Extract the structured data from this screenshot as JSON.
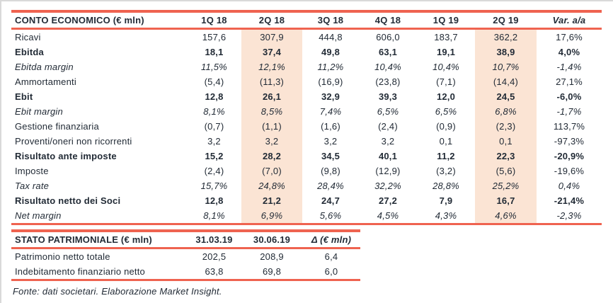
{
  "colors": {
    "accent_line": "#ef6350",
    "highlight": "#fbe4d4",
    "text": "#222b36",
    "frame_border": "#d9d9d9"
  },
  "income_statement": {
    "title": "CONTO ECONOMICO (€ mln)",
    "columns": [
      "1Q 18",
      "2Q 18",
      "3Q 18",
      "4Q 18",
      "1Q 19",
      "2Q 19",
      "Var. a/a"
    ],
    "highlight_columns": [
      "2Q 18",
      "2Q 19"
    ],
    "rows": [
      {
        "label": "Ricavi",
        "style": "normal",
        "values": [
          "157,6",
          "307,9",
          "444,8",
          "606,0",
          "183,7",
          "362,2",
          "17,6%"
        ]
      },
      {
        "label": "Ebitda",
        "style": "bold",
        "values": [
          "18,1",
          "37,4",
          "49,8",
          "63,1",
          "19,1",
          "38,9",
          "4,0%"
        ]
      },
      {
        "label": "Ebitda margin",
        "style": "italic",
        "values": [
          "11,5%",
          "12,1%",
          "11,2%",
          "10,4%",
          "10,4%",
          "10,7%",
          "-1,4%"
        ]
      },
      {
        "label": "Ammortamenti",
        "style": "normal",
        "values": [
          "(5,4)",
          "(11,3)",
          "(16,9)",
          "(23,8)",
          "(7,1)",
          "(14,4)",
          "27,1%"
        ]
      },
      {
        "label": "Ebit",
        "style": "bold",
        "values": [
          "12,8",
          "26,1",
          "32,9",
          "39,3",
          "12,0",
          "24,5",
          "-6,0%"
        ]
      },
      {
        "label": "Ebit margin",
        "style": "italic",
        "values": [
          "8,1%",
          "8,5%",
          "7,4%",
          "6,5%",
          "6,5%",
          "6,8%",
          "-1,7%"
        ]
      },
      {
        "label": "Gestione finanziaria",
        "style": "normal",
        "values": [
          "(0,7)",
          "(1,1)",
          "(1,6)",
          "(2,4)",
          "(0,9)",
          "(2,3)",
          "113,7%"
        ]
      },
      {
        "label": "Proventi/oneri non ricorrenti",
        "style": "normal",
        "values": [
          "3,2",
          "3,2",
          "3,2",
          "3,2",
          "0,1",
          "0,1",
          "-97,3%"
        ]
      },
      {
        "label": "Risultato ante imposte",
        "style": "bold",
        "values": [
          "15,2",
          "28,2",
          "34,5",
          "40,1",
          "11,2",
          "22,3",
          "-20,9%"
        ]
      },
      {
        "label": "Imposte",
        "style": "normal",
        "values": [
          "(2,4)",
          "(7,0)",
          "(9,8)",
          "(12,9)",
          "(3,2)",
          "(5,6)",
          "-19,6%"
        ]
      },
      {
        "label": "Tax rate",
        "style": "italic",
        "values": [
          "15,7%",
          "24,8%",
          "28,4%",
          "32,2%",
          "28,8%",
          "25,2%",
          "0,4%"
        ]
      },
      {
        "label": "Risultato netto dei Soci",
        "style": "bold",
        "values": [
          "12,8",
          "21,2",
          "24,7",
          "27,2",
          "7,9",
          "16,7",
          "-21,4%"
        ]
      },
      {
        "label": "Net margin",
        "style": "italic",
        "values": [
          "8,1%",
          "6,9%",
          "5,6%",
          "4,5%",
          "4,3%",
          "4,6%",
          "-2,3%"
        ]
      }
    ]
  },
  "balance_sheet": {
    "title": "STATO PATRIMONIALE (€ mln)",
    "columns": [
      "31.03.19",
      "30.06.19",
      "Δ (€ mln)"
    ],
    "highlight_columns": [],
    "rows": [
      {
        "label": "Patrimonio netto totale",
        "style": "normal",
        "values": [
          "202,5",
          "208,9",
          "6,4"
        ]
      },
      {
        "label": "Indebitamento finanziario netto",
        "style": "normal",
        "values": [
          "63,8",
          "69,8",
          "6,0"
        ]
      }
    ]
  },
  "footer": {
    "source_note": "Fonte: dati societari. Elaborazione Market Insight."
  }
}
